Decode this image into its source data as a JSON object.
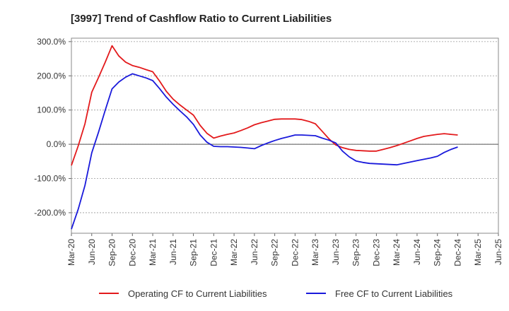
{
  "chart_data": {
    "type": "line",
    "title": "[3997]  Trend of Cashflow Ratio to Current Liabilities",
    "xlabel": "",
    "ylabel": "",
    "ylim": [
      -260,
      310
    ],
    "yticks": [
      -200,
      -100,
      0,
      100,
      200,
      300
    ],
    "ytick_labels": [
      "-200.0%",
      "-100.0%",
      "0.0%",
      "100.0%",
      "200.0%",
      "300.0%"
    ],
    "x_months_range": [
      "2020-03",
      "2025-06"
    ],
    "xtick_labels": [
      "Mar-20",
      "Jun-20",
      "Sep-20",
      "Dec-20",
      "Mar-21",
      "Jun-21",
      "Sep-21",
      "Dec-21",
      "Mar-22",
      "Jun-22",
      "Sep-22",
      "Dec-22",
      "Mar-23",
      "Jun-23",
      "Sep-23",
      "Dec-23",
      "Mar-24",
      "Jun-24",
      "Sep-24",
      "Dec-24",
      "Mar-25",
      "Jun-25"
    ],
    "grid": "horizontal dashed",
    "legend": "bottom",
    "series": [
      {
        "name": "Operating CF to Current Liabilities",
        "color": "#e31a1c",
        "points": [
          [
            "2020-03",
            -62
          ],
          [
            "2020-04",
            -5
          ],
          [
            "2020-05",
            60
          ],
          [
            "2020-06",
            152
          ],
          [
            "2020-07",
            195
          ],
          [
            "2020-08",
            240
          ],
          [
            "2020-09",
            288
          ],
          [
            "2020-10",
            258
          ],
          [
            "2020-11",
            240
          ],
          [
            "2020-12",
            230
          ],
          [
            "2021-01",
            225
          ],
          [
            "2021-02",
            218
          ],
          [
            "2021-03",
            212
          ],
          [
            "2021-04",
            185
          ],
          [
            "2021-05",
            155
          ],
          [
            "2021-06",
            132
          ],
          [
            "2021-07",
            115
          ],
          [
            "2021-08",
            100
          ],
          [
            "2021-09",
            85
          ],
          [
            "2021-10",
            55
          ],
          [
            "2021-11",
            32
          ],
          [
            "2021-12",
            18
          ],
          [
            "2022-01",
            24
          ],
          [
            "2022-02",
            29
          ],
          [
            "2022-03",
            33
          ],
          [
            "2022-04",
            40
          ],
          [
            "2022-05",
            48
          ],
          [
            "2022-06",
            57
          ],
          [
            "2022-07",
            63
          ],
          [
            "2022-08",
            68
          ],
          [
            "2022-09",
            73
          ],
          [
            "2022-10",
            74
          ],
          [
            "2022-11",
            74
          ],
          [
            "2022-12",
            74
          ],
          [
            "2023-01",
            72
          ],
          [
            "2023-02",
            67
          ],
          [
            "2023-03",
            60
          ],
          [
            "2023-04",
            38
          ],
          [
            "2023-05",
            16
          ],
          [
            "2023-06",
            -2
          ],
          [
            "2023-07",
            -10
          ],
          [
            "2023-08",
            -15
          ],
          [
            "2023-09",
            -18
          ],
          [
            "2023-10",
            -19
          ],
          [
            "2023-11",
            -20
          ],
          [
            "2023-12",
            -20
          ],
          [
            "2024-01",
            -15
          ],
          [
            "2024-02",
            -10
          ],
          [
            "2024-03",
            -4
          ],
          [
            "2024-04",
            3
          ],
          [
            "2024-05",
            10
          ],
          [
            "2024-06",
            17
          ],
          [
            "2024-07",
            23
          ],
          [
            "2024-08",
            26
          ],
          [
            "2024-09",
            29
          ],
          [
            "2024-10",
            31
          ],
          [
            "2024-11",
            29
          ],
          [
            "2024-12",
            27
          ]
        ]
      },
      {
        "name": "Free CF to Current Liabilities",
        "color": "#1a1adb",
        "points": [
          [
            "2020-03",
            -248
          ],
          [
            "2020-04",
            -190
          ],
          [
            "2020-05",
            -120
          ],
          [
            "2020-06",
            -25
          ],
          [
            "2020-07",
            35
          ],
          [
            "2020-08",
            100
          ],
          [
            "2020-09",
            162
          ],
          [
            "2020-10",
            182
          ],
          [
            "2020-11",
            196
          ],
          [
            "2020-12",
            206
          ],
          [
            "2021-01",
            200
          ],
          [
            "2021-02",
            194
          ],
          [
            "2021-03",
            186
          ],
          [
            "2021-04",
            163
          ],
          [
            "2021-05",
            138
          ],
          [
            "2021-06",
            117
          ],
          [
            "2021-07",
            98
          ],
          [
            "2021-08",
            80
          ],
          [
            "2021-09",
            58
          ],
          [
            "2021-10",
            27
          ],
          [
            "2021-11",
            6
          ],
          [
            "2021-12",
            -6
          ],
          [
            "2022-01",
            -7
          ],
          [
            "2022-02",
            -7
          ],
          [
            "2022-03",
            -8
          ],
          [
            "2022-04",
            -9
          ],
          [
            "2022-05",
            -11
          ],
          [
            "2022-06",
            -13
          ],
          [
            "2022-07",
            -4
          ],
          [
            "2022-08",
            4
          ],
          [
            "2022-09",
            11
          ],
          [
            "2022-10",
            17
          ],
          [
            "2022-11",
            22
          ],
          [
            "2022-12",
            27
          ],
          [
            "2023-01",
            27
          ],
          [
            "2023-02",
            26
          ],
          [
            "2023-03",
            25
          ],
          [
            "2023-04",
            18
          ],
          [
            "2023-05",
            12
          ],
          [
            "2023-06",
            4
          ],
          [
            "2023-07",
            -20
          ],
          [
            "2023-08",
            -37
          ],
          [
            "2023-09",
            -49
          ],
          [
            "2023-10",
            -53
          ],
          [
            "2023-11",
            -56
          ],
          [
            "2023-12",
            -57
          ],
          [
            "2024-01",
            -58
          ],
          [
            "2024-02",
            -59
          ],
          [
            "2024-03",
            -60
          ],
          [
            "2024-04",
            -56
          ],
          [
            "2024-05",
            -52
          ],
          [
            "2024-06",
            -48
          ],
          [
            "2024-07",
            -44
          ],
          [
            "2024-08",
            -40
          ],
          [
            "2024-09",
            -35
          ],
          [
            "2024-10",
            -24
          ],
          [
            "2024-11",
            -15
          ],
          [
            "2024-12",
            -8
          ]
        ]
      }
    ]
  }
}
